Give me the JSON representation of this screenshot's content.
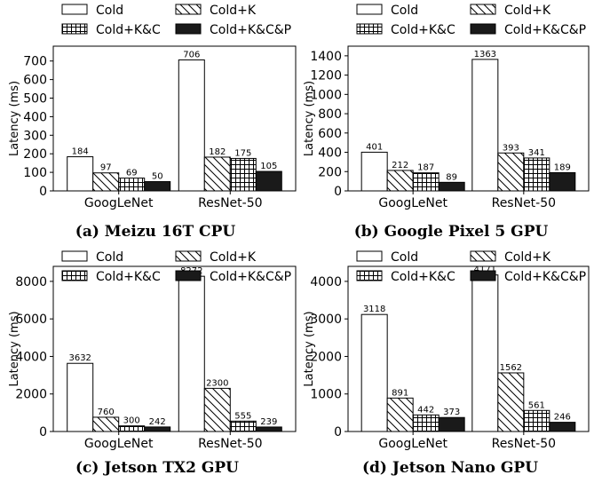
{
  "colors": {
    "black": "#000000",
    "dark_fill": "#1a1a1a",
    "white": "#ffffff"
  },
  "chart_data": [
    {
      "type": "bar",
      "caption": "(a) Meizu 16T CPU",
      "ylabel": "Latency (ms)",
      "categories": [
        "GoogLeNet",
        "ResNet-50"
      ],
      "ylim": [
        0,
        780
      ],
      "yticks": [
        0,
        100,
        200,
        300,
        400,
        500,
        600,
        700
      ],
      "legend_position": "top",
      "series": [
        {
          "name": "Cold",
          "values": [
            184,
            706
          ]
        },
        {
          "name": "Cold+K",
          "values": [
            97,
            182
          ]
        },
        {
          "name": "Cold+K&C",
          "values": [
            69,
            175
          ]
        },
        {
          "name": "Cold+K&C&P",
          "values": [
            50,
            105
          ]
        }
      ]
    },
    {
      "type": "bar",
      "caption": "(b) Google Pixel 5 GPU",
      "ylabel": "Latency (ms)",
      "categories": [
        "GoogLeNet",
        "ResNet-50"
      ],
      "ylim": [
        0,
        1500
      ],
      "yticks": [
        0,
        200,
        400,
        600,
        800,
        1000,
        1200,
        1400
      ],
      "legend_position": "top",
      "series": [
        {
          "name": "Cold",
          "values": [
            401,
            1363
          ]
        },
        {
          "name": "Cold+K",
          "values": [
            212,
            393
          ]
        },
        {
          "name": "Cold+K&C",
          "values": [
            187,
            341
          ]
        },
        {
          "name": "Cold+K&C&P",
          "values": [
            89,
            189
          ]
        }
      ]
    },
    {
      "type": "bar",
      "caption": "(c) Jetson TX2 GPU",
      "ylabel": "Latency (ms)",
      "categories": [
        "GoogLeNet",
        "ResNet-50"
      ],
      "ylim": [
        0,
        8800
      ],
      "yticks": [
        0,
        2000,
        4000,
        6000,
        8000
      ],
      "legend_position": "top",
      "series": [
        {
          "name": "Cold",
          "values": [
            3632,
            8272
          ]
        },
        {
          "name": "Cold+K",
          "values": [
            760,
            2300
          ]
        },
        {
          "name": "Cold+K&C",
          "values": [
            300,
            555
          ]
        },
        {
          "name": "Cold+K&C&P",
          "values": [
            242,
            239
          ]
        }
      ]
    },
    {
      "type": "bar",
      "caption": "(d) Jetson Nano GPU",
      "ylabel": "Latency (ms)",
      "categories": [
        "GoogLeNet",
        "ResNet-50"
      ],
      "ylim": [
        0,
        4400
      ],
      "yticks": [
        0,
        1000,
        2000,
        3000,
        4000
      ],
      "legend_position": "top",
      "series": [
        {
          "name": "Cold",
          "values": [
            3118,
            4171
          ]
        },
        {
          "name": "Cold+K",
          "values": [
            891,
            1562
          ]
        },
        {
          "name": "Cold+K&C",
          "values": [
            442,
            561
          ]
        },
        {
          "name": "Cold+K&C&P",
          "values": [
            373,
            246
          ]
        }
      ]
    }
  ]
}
